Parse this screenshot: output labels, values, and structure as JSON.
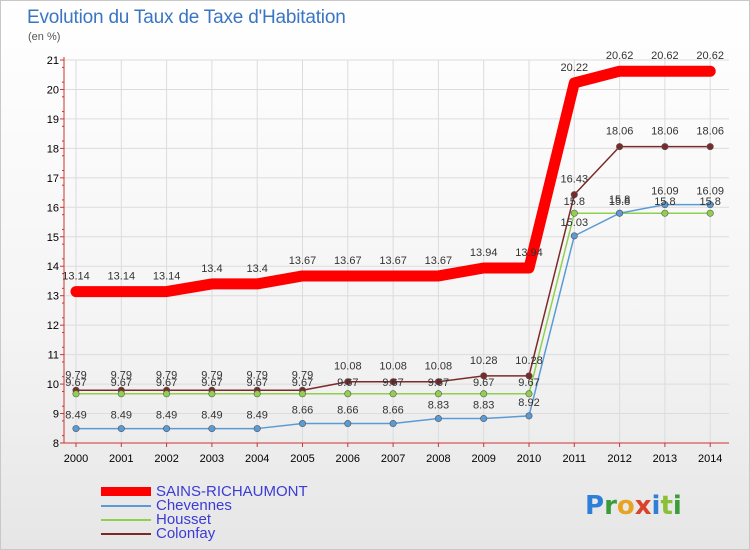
{
  "title": "Evolution du Taux de Taxe d'Habitation",
  "subtitle": "(en %)",
  "logo": {
    "text": "Proxiti"
  },
  "chart_data": {
    "type": "line",
    "x": [
      "2000",
      "2001",
      "2002",
      "2003",
      "2004",
      "2005",
      "2006",
      "2007",
      "2008",
      "2009",
      "2010",
      "2011",
      "2012",
      "2013",
      "2014"
    ],
    "ylim": [
      8,
      21
    ],
    "yticks": [
      "8",
      "9",
      "10",
      "11",
      "12",
      "13",
      "14",
      "15",
      "16",
      "17",
      "18",
      "19",
      "20",
      "21"
    ],
    "legend_position": "bottom-left",
    "series": [
      {
        "name": "SAINS-RICHAUMONT",
        "color": "#ff0000",
        "values": [
          13.14,
          13.14,
          13.14,
          13.4,
          13.4,
          13.67,
          13.67,
          13.67,
          13.67,
          13.94,
          13.94,
          20.22,
          20.62,
          20.62,
          20.62
        ],
        "labels": [
          "13.14",
          "13.14",
          "13.14",
          "13.4",
          "13.4",
          "13.67",
          "13.67",
          "13.67",
          "13.67",
          "13.94",
          "13.94",
          "20.22",
          "20.62",
          "20.62",
          "20.62"
        ]
      },
      {
        "name": "Chevennes",
        "color": "#5b9bd5",
        "values": [
          8.49,
          8.49,
          8.49,
          8.49,
          8.49,
          8.66,
          8.66,
          8.66,
          8.83,
          8.83,
          8.92,
          15.03,
          15.8,
          16.09,
          16.09
        ],
        "labels": [
          "8.49",
          "8.49",
          "8.49",
          "8.49",
          "8.49",
          "8.66",
          "8.66",
          "8.66",
          "8.83",
          "8.83",
          "8.92",
          "15.03",
          "15.8",
          "16.09",
          "16.09"
        ]
      },
      {
        "name": "Housset",
        "color": "#8fd14f",
        "values": [
          9.67,
          9.67,
          9.67,
          9.67,
          9.67,
          9.67,
          9.67,
          9.67,
          9.67,
          9.67,
          9.67,
          15.8,
          15.8,
          15.8,
          15.8
        ],
        "labels": [
          "9.67",
          "9.67",
          "9.67",
          "9.67",
          "9.67",
          "9.67",
          "9.67",
          "9.67",
          "9.67",
          "9.67",
          "9.67",
          "15.8",
          "15.8",
          "15.8",
          "15.8"
        ]
      },
      {
        "name": "Colonfay",
        "color": "#7b2a2a",
        "values": [
          9.79,
          9.79,
          9.79,
          9.79,
          9.79,
          9.79,
          10.08,
          10.08,
          10.08,
          10.28,
          10.28,
          16.43,
          18.06,
          18.06,
          18.06
        ],
        "labels": [
          "9.79",
          "9.79",
          "9.79",
          "9.79",
          "9.79",
          "9.79",
          "10.08",
          "10.08",
          "10.08",
          "10.28",
          "10.28",
          "16.43",
          "18.06",
          "18.06",
          "18.06"
        ]
      }
    ]
  }
}
